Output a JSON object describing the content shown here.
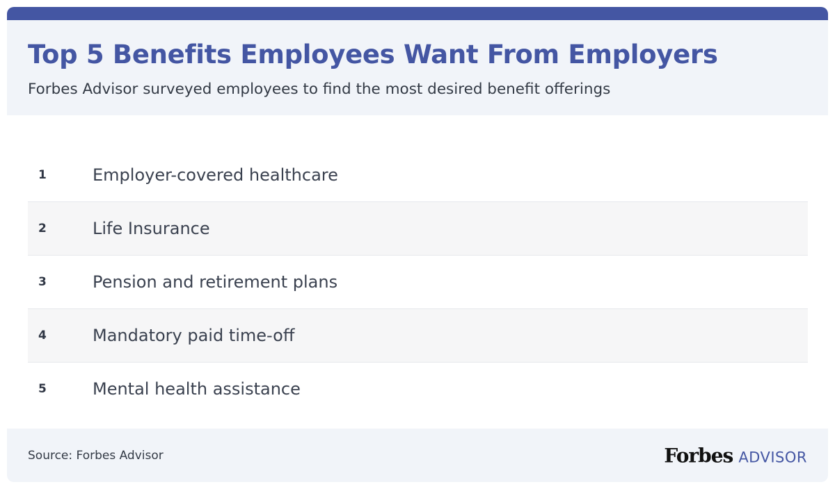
{
  "header": {
    "title": "Top 5 Benefits Employees Want From Employers",
    "subtitle": "Forbes Advisor surveyed employees to find the most desired benefit offerings"
  },
  "benefits": [
    {
      "rank": "1",
      "label": "Employer-covered healthcare"
    },
    {
      "rank": "2",
      "label": "Life Insurance"
    },
    {
      "rank": "3",
      "label": "Pension and retirement plans"
    },
    {
      "rank": "4",
      "label": "Mandatory paid time-off"
    },
    {
      "rank": "5",
      "label": "Mental health assistance"
    }
  ],
  "footer": {
    "source": "Source: Forbes Advisor",
    "logo_brand": "Forbes",
    "logo_suffix": "ADVISOR"
  },
  "colors": {
    "accent": "#4456a3",
    "header_background": "#f1f4f9",
    "row_shade": "#f6f6f7",
    "text": "#333a45"
  }
}
